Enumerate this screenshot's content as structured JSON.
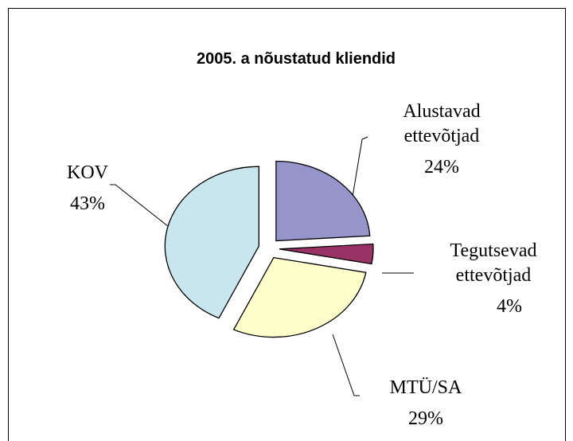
{
  "chart_data": {
    "type": "pie",
    "title": "2005. a nõustatud kliendid",
    "categories": [
      "Alustavad ettevõtjad",
      "Tegutsevad ettevõtjad",
      "MTÜ/SA",
      "KOV"
    ],
    "values": [
      24,
      4,
      29,
      43
    ],
    "value_labels": [
      "24%",
      "4%",
      "29%",
      "43%"
    ],
    "colors": [
      "#9595cc",
      "#993366",
      "#ffffcc",
      "#c9e6ee"
    ]
  }
}
